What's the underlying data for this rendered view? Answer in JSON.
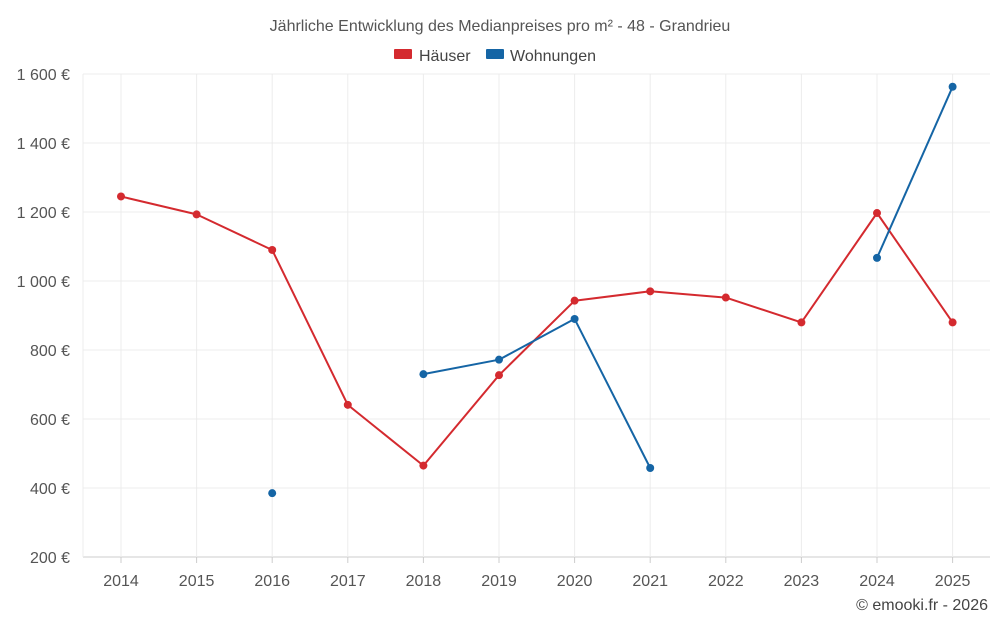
{
  "chart_data": {
    "type": "line",
    "title": "Jährliche Entwicklung des Medianpreises pro m² - 48 - Grandrieu",
    "categories": [
      "2014",
      "2015",
      "2016",
      "2017",
      "2018",
      "2019",
      "2020",
      "2021",
      "2022",
      "2023",
      "2024",
      "2025"
    ],
    "ylim": [
      200,
      1600
    ],
    "yticks": [
      {
        "value": 200,
        "label": "200 €"
      },
      {
        "value": 400,
        "label": "400 €"
      },
      {
        "value": 600,
        "label": "600 €"
      },
      {
        "value": 800,
        "label": "800 €"
      },
      {
        "value": 1000,
        "label": "1 000 €"
      },
      {
        "value": 1200,
        "label": "1 200 €"
      },
      {
        "value": 1400,
        "label": "1 400 €"
      },
      {
        "value": 1600,
        "label": "1 600 €"
      }
    ],
    "xlabel": "",
    "ylabel": "",
    "grid": true,
    "legend_position": "top-center",
    "series": [
      {
        "name": "Häuser",
        "color": "#d42a2f",
        "values": [
          1245,
          1193,
          1090,
          641,
          465,
          727,
          943,
          970,
          952,
          880,
          1197,
          880
        ]
      },
      {
        "name": "Wohnungen",
        "color": "#1565a5",
        "values": [
          null,
          null,
          385,
          null,
          730,
          772,
          890,
          458,
          null,
          null,
          1067,
          1563
        ]
      }
    ]
  },
  "footer": {
    "credit": "© emooki.fr - 2026"
  }
}
